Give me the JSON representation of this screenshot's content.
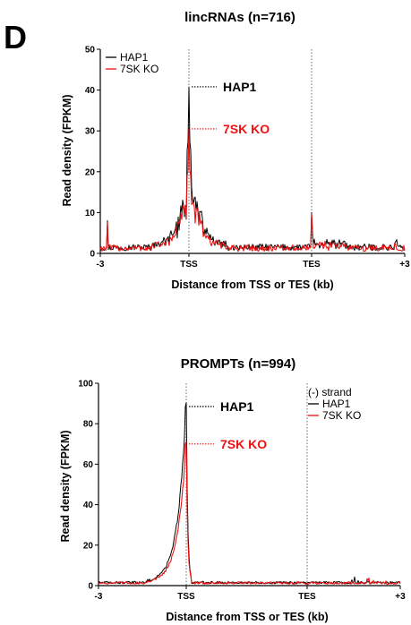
{
  "panel_letter": "D",
  "chart_data": [
    {
      "type": "line",
      "title": "lincRNAs (n=716)",
      "xlabel": "Distance from TSS or TES (kb)",
      "ylabel": "Read density (FPKM)",
      "ylim": [
        0,
        50
      ],
      "yticks": [
        0,
        10,
        20,
        30,
        40,
        50
      ],
      "xtick_labels": [
        "-3",
        "TSS",
        "TES",
        "+3"
      ],
      "legend": {
        "position": "top-left",
        "title": "",
        "entries": [
          "HAP1",
          "7SK KO"
        ]
      },
      "annotations": [
        {
          "label": "HAP1",
          "value": 40.8,
          "series": "HAP1"
        },
        {
          "label": "7SK KO",
          "value": 30.5,
          "series": "7SK KO"
        }
      ],
      "series": [
        {
          "name": "HAP1",
          "color": "#000000",
          "baseline": 1.5,
          "peak": 40.8,
          "tes_spike": 10,
          "early_spike": 8
        },
        {
          "name": "7SK KO",
          "color": "#ee1111",
          "baseline": 1.3,
          "peak": 30.5,
          "tes_spike": 9.5,
          "early_spike": 7.5
        }
      ]
    },
    {
      "type": "line",
      "title": "PROMPTs (n=994)",
      "xlabel": "Distance from TSS or TES (kb)",
      "ylabel": "Read density (FPKM)",
      "ylim": [
        0,
        100
      ],
      "yticks": [
        0,
        20,
        40,
        60,
        80,
        100
      ],
      "xtick_labels": [
        "-3",
        "TSS",
        "TES",
        "+3"
      ],
      "legend": {
        "position": "top-right",
        "title": "(-) strand",
        "entries": [
          "HAP1",
          "7SK KO"
        ]
      },
      "annotations": [
        {
          "label": "HAP1",
          "value": 88.5,
          "series": "HAP1"
        },
        {
          "label": "7SK KO",
          "value": 70,
          "series": "7SK KO"
        }
      ],
      "series": [
        {
          "name": "HAP1",
          "color": "#000000",
          "baseline": 1.5,
          "peak": 88.5
        },
        {
          "name": "7SK KO",
          "color": "#ee1111",
          "baseline": 1.3,
          "peak": 70
        }
      ]
    }
  ]
}
